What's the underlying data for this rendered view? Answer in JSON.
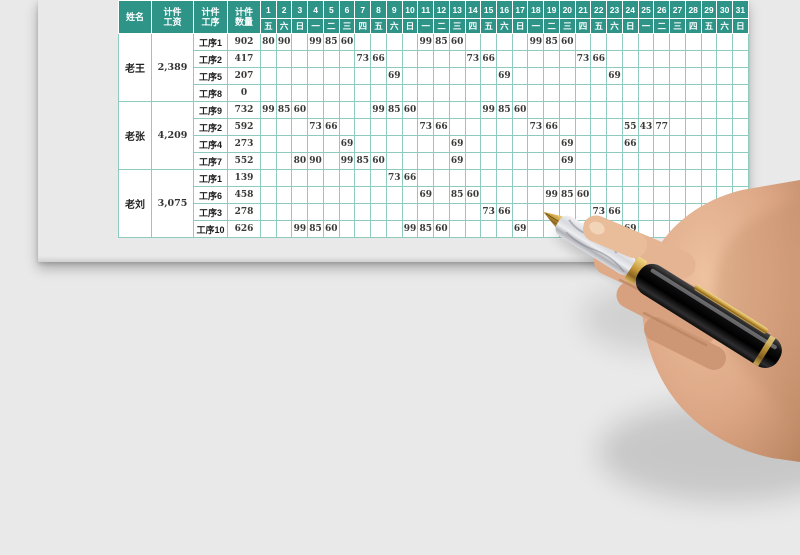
{
  "colors": {
    "header_teal": "#2e9488",
    "grid_line": "#8fcabe",
    "paper": "#fcfcfa",
    "background": "#e9e9e9",
    "data_text": "#3b3a38",
    "pen_gold": "#c89b3c",
    "pen_black": "#141414"
  },
  "table": {
    "corner_headers": [
      "姓名",
      "计件\n工资",
      "计件\n工序",
      "计件\n数量"
    ],
    "day_numbers": [
      1,
      2,
      3,
      4,
      5,
      6,
      7,
      8,
      9,
      10,
      11,
      12,
      13,
      14,
      15,
      16,
      17,
      18,
      19,
      20,
      21,
      22,
      23,
      24,
      25,
      26,
      27,
      28,
      29,
      30,
      31
    ],
    "weekdays": [
      "五",
      "六",
      "日",
      "一",
      "二",
      "三",
      "四",
      "五",
      "六",
      "日",
      "一",
      "二",
      "三",
      "四",
      "五",
      "六",
      "日",
      "一",
      "二",
      "三",
      "四",
      "五",
      "六",
      "日",
      "一",
      "二",
      "三",
      "四",
      "五",
      "六",
      "日"
    ],
    "workers": [
      {
        "name": "老王",
        "wage": "2,389",
        "rows": [
          {
            "process": "工序1",
            "qty": "902",
            "values": {
              "1": 80,
              "2": 90,
              "4": 99,
              "5": 85,
              "6": 60,
              "11": 99,
              "12": 85,
              "13": 60,
              "18": 99,
              "19": 85,
              "20": 60
            }
          },
          {
            "process": "工序2",
            "qty": "417",
            "values": {
              "7": 73,
              "8": 66,
              "14": 73,
              "15": 66,
              "21": 73,
              "22": 66
            }
          },
          {
            "process": "工序5",
            "qty": "207",
            "values": {
              "9": 69,
              "16": 69,
              "23": 69
            }
          },
          {
            "process": "工序8",
            "qty": "0",
            "values": {}
          }
        ]
      },
      {
        "name": "老张",
        "wage": "4,209",
        "rows": [
          {
            "process": "工序9",
            "qty": "732",
            "values": {
              "1": 99,
              "2": 85,
              "3": 60,
              "8": 99,
              "9": 85,
              "10": 60,
              "15": 99,
              "16": 85,
              "17": 60
            }
          },
          {
            "process": "工序2",
            "qty": "592",
            "values": {
              "4": 73,
              "5": 66,
              "11": 73,
              "12": 66,
              "18": 73,
              "19": 66,
              "24": 55,
              "25": 43,
              "26": 77
            }
          },
          {
            "process": "工序4",
            "qty": "273",
            "values": {
              "6": 69,
              "13": 69,
              "20": 69,
              "24": 66
            }
          },
          {
            "process": "工序7",
            "qty": "552",
            "values": {
              "3": 80,
              "4": 90,
              "6": 99,
              "7": 85,
              "8": 60,
              "13": 69,
              "20": 69
            }
          }
        ]
      },
      {
        "name": "老刘",
        "wage": "3,075",
        "rows": [
          {
            "process": "工序1",
            "qty": "139",
            "values": {
              "9": 73,
              "10": 66
            }
          },
          {
            "process": "工序6",
            "qty": "458",
            "values": {
              "11": 69,
              "13": 85,
              "14": 60,
              "19": 99,
              "20": 85,
              "21": 60
            }
          },
          {
            "process": "工序3",
            "qty": "278",
            "values": {
              "15": 73,
              "16": 66,
              "22": 73,
              "23": 66
            }
          },
          {
            "process": "工序10",
            "qty": "626",
            "values": {
              "3": 99,
              "4": 85,
              "5": 60,
              "10": 99,
              "11": 85,
              "12": 60,
              "17": 69,
              "24": 69
            }
          }
        ]
      }
    ]
  },
  "illustration": {
    "name": "hand-holding-fountain-pen"
  }
}
